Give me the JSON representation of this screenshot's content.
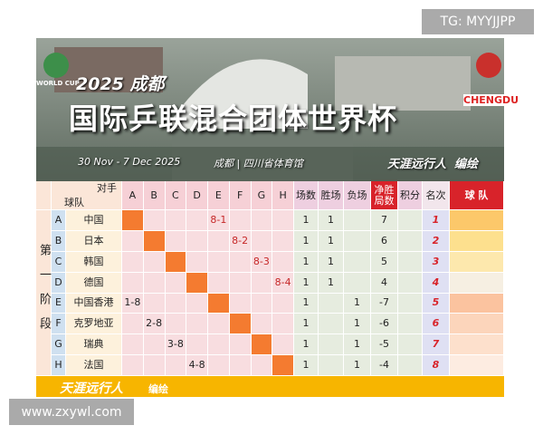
{
  "watermark_top": "TG: MYYJJPP",
  "header": {
    "logo_left": "WORLD CUP",
    "logo_right": "CHENGDU",
    "year_city": "2025 成都",
    "title": "国际乒联混合团体世界杯",
    "dates": "30 Nov - 7 Dec 2025",
    "venue": "成都 | 四川省体育馆",
    "author": "天涯远行人  编绘"
  },
  "table": {
    "stage": "第一阶段",
    "corner_top": "对手",
    "corner_bottom": "球队",
    "opponents": [
      "A",
      "B",
      "C",
      "D",
      "E",
      "F",
      "G",
      "H"
    ],
    "columns": [
      "场数",
      "胜场",
      "负场",
      "净胜局数",
      "积分",
      "名次",
      "球 队"
    ],
    "rows": [
      {
        "letter": "A",
        "team": "中国",
        "results": [
          null,
          null,
          null,
          null,
          "8-1",
          null,
          null,
          null
        ],
        "played": 1,
        "won": 1,
        "lost": null,
        "net": 7,
        "rank": 1
      },
      {
        "letter": "B",
        "team": "日本",
        "results": [
          null,
          null,
          null,
          null,
          null,
          "8-2",
          null,
          null
        ],
        "played": 1,
        "won": 1,
        "lost": null,
        "net": 6,
        "rank": 2
      },
      {
        "letter": "C",
        "team": "韩国",
        "results": [
          null,
          null,
          null,
          null,
          null,
          null,
          "8-3",
          null
        ],
        "played": 1,
        "won": 1,
        "lost": null,
        "net": 5,
        "rank": 3
      },
      {
        "letter": "D",
        "team": "德国",
        "results": [
          null,
          null,
          null,
          null,
          null,
          null,
          null,
          "8-4"
        ],
        "played": 1,
        "won": 1,
        "lost": null,
        "net": 4,
        "rank": 4
      },
      {
        "letter": "E",
        "team": "中国香港",
        "results": [
          "1-8",
          null,
          null,
          null,
          null,
          null,
          null,
          null
        ],
        "played": 1,
        "won": null,
        "lost": 1,
        "net": -7,
        "rank": 5
      },
      {
        "letter": "F",
        "team": "克罗地亚",
        "results": [
          null,
          "2-8",
          null,
          null,
          null,
          null,
          null,
          null
        ],
        "played": 1,
        "won": null,
        "lost": 1,
        "net": -6,
        "rank": 6
      },
      {
        "letter": "G",
        "team": "瑞典",
        "results": [
          null,
          null,
          "3-8",
          null,
          null,
          null,
          null,
          null
        ],
        "played": 1,
        "won": null,
        "lost": 1,
        "net": -5,
        "rank": 7
      },
      {
        "letter": "H",
        "team": "法国",
        "results": [
          null,
          null,
          null,
          "4-8",
          null,
          null,
          null,
          null
        ],
        "played": 1,
        "won": null,
        "lost": 1,
        "net": -4,
        "rank": 8
      }
    ]
  },
  "footer": {
    "author": "天涯远行人",
    "credit": "编绘"
  },
  "watermark_bottom": "www.zxywl.com"
}
